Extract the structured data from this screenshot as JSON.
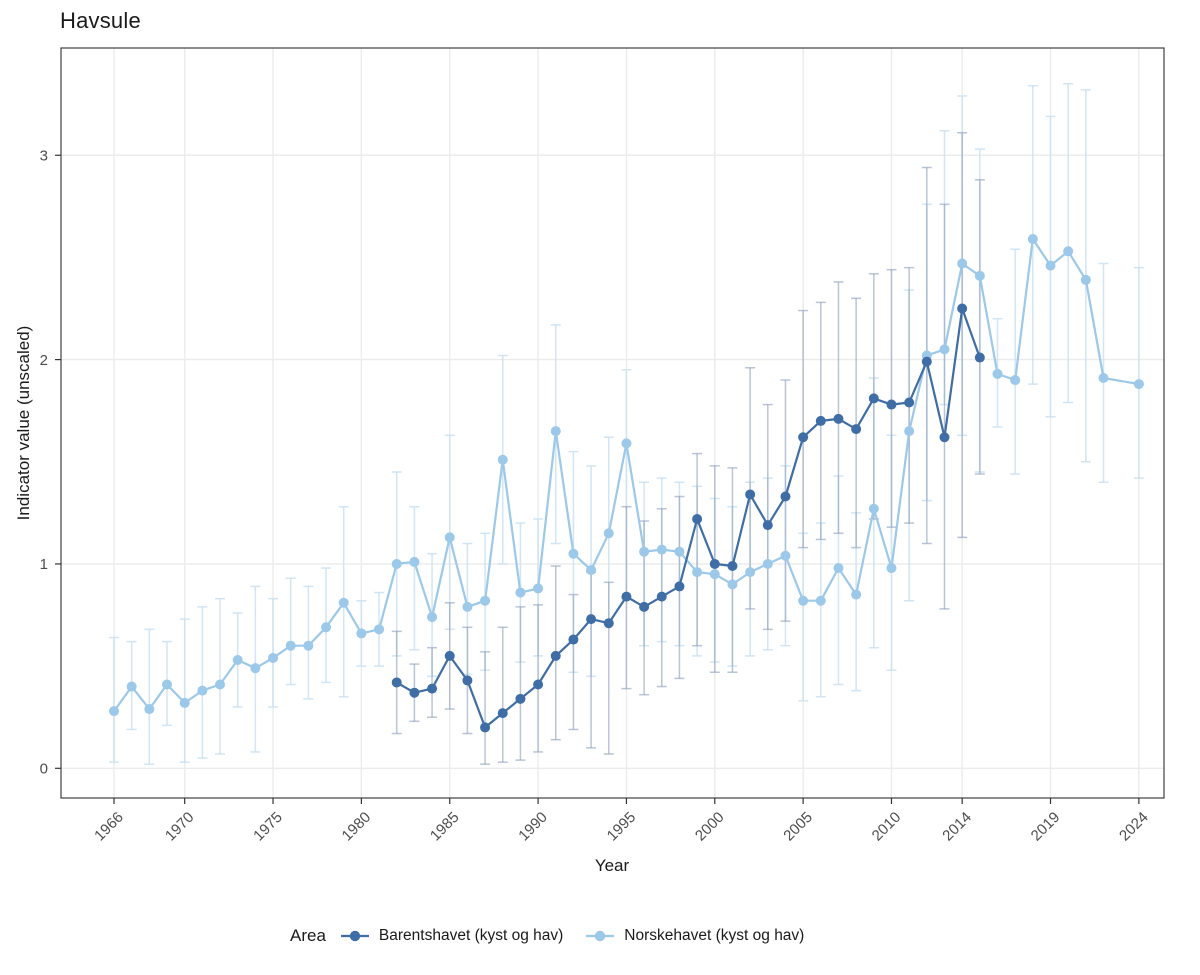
{
  "chart_data": {
    "type": "line",
    "title": "Havsule",
    "xlabel": "Year",
    "ylabel": "Indicator value (unscaled)",
    "legend_title": "Area",
    "legend_position": "bottom",
    "grid": "major-only",
    "x_ticks": [
      1966,
      1970,
      1975,
      1980,
      1985,
      1990,
      1995,
      2000,
      2005,
      2010,
      2014,
      2019,
      2024
    ],
    "y_ticks": [
      0,
      1,
      2,
      3
    ],
    "xlim": [
      1963,
      2025.4
    ],
    "ylim": [
      -0.15,
      3.52
    ],
    "point_format": [
      "year",
      "value",
      "ci_low",
      "ci_high"
    ],
    "series": [
      {
        "name": "Barentshavet (kyst og hav)",
        "color": "#3f6da5",
        "error_color": "#8b9fbd",
        "error_opacity": 0.6,
        "points": [
          [
            1982,
            0.42,
            0.17,
            0.67
          ],
          [
            1983,
            0.37,
            0.23,
            0.51
          ],
          [
            1984,
            0.39,
            0.25,
            0.59
          ],
          [
            1985,
            0.55,
            0.29,
            0.81
          ],
          [
            1986,
            0.43,
            0.17,
            0.69
          ],
          [
            1987,
            0.2,
            0.02,
            0.57
          ],
          [
            1988,
            0.27,
            0.03,
            0.69
          ],
          [
            1989,
            0.34,
            0.04,
            0.79
          ],
          [
            1990,
            0.41,
            0.08,
            0.8
          ],
          [
            1991,
            0.55,
            0.14,
            0.99
          ],
          [
            1992,
            0.63,
            0.19,
            0.85
          ],
          [
            1993,
            0.73,
            0.1,
            0.96
          ],
          [
            1994,
            0.71,
            0.07,
            0.91
          ],
          [
            1995,
            0.84,
            0.39,
            1.28
          ],
          [
            1996,
            0.79,
            0.36,
            1.21
          ],
          [
            1997,
            0.84,
            0.4,
            1.27
          ],
          [
            1998,
            0.89,
            0.44,
            1.33
          ],
          [
            1999,
            1.22,
            0.6,
            1.54
          ],
          [
            2000,
            1.0,
            0.47,
            1.48
          ],
          [
            2001,
            0.99,
            0.47,
            1.47
          ],
          [
            2002,
            1.34,
            0.78,
            1.96
          ],
          [
            2003,
            1.19,
            0.68,
            1.78
          ],
          [
            2004,
            1.33,
            0.72,
            1.9
          ],
          [
            2005,
            1.62,
            1.08,
            2.24
          ],
          [
            2006,
            1.7,
            1.12,
            2.28
          ],
          [
            2007,
            1.71,
            1.15,
            2.38
          ],
          [
            2008,
            1.66,
            1.08,
            2.3
          ],
          [
            2009,
            1.81,
            1.22,
            2.42
          ],
          [
            2010,
            1.78,
            1.18,
            2.44
          ],
          [
            2011,
            1.79,
            1.2,
            2.45
          ],
          [
            2012,
            1.99,
            1.1,
            2.94
          ],
          [
            2013,
            1.62,
            0.78,
            2.76
          ],
          [
            2014,
            2.25,
            1.13,
            3.11
          ],
          [
            2015,
            2.01,
            1.44,
            2.88
          ]
        ]
      },
      {
        "name": "Norskehavet (kyst og hav)",
        "color": "#9cc8e9",
        "error_color": "#c9e0f2",
        "error_opacity": 0.85,
        "points": [
          [
            1966,
            0.28,
            0.03,
            0.64
          ],
          [
            1967,
            0.4,
            0.19,
            0.62
          ],
          [
            1968,
            0.29,
            0.02,
            0.68
          ],
          [
            1969,
            0.41,
            0.21,
            0.62
          ],
          [
            1970,
            0.32,
            0.03,
            0.73
          ],
          [
            1971,
            0.38,
            0.05,
            0.79
          ],
          [
            1972,
            0.41,
            0.07,
            0.83
          ],
          [
            1973,
            0.53,
            0.3,
            0.76
          ],
          [
            1974,
            0.49,
            0.08,
            0.89
          ],
          [
            1975,
            0.54,
            0.3,
            0.83
          ],
          [
            1976,
            0.6,
            0.41,
            0.93
          ],
          [
            1977,
            0.6,
            0.34,
            0.89
          ],
          [
            1978,
            0.69,
            0.42,
            0.98
          ],
          [
            1979,
            0.81,
            0.35,
            1.28
          ],
          [
            1980,
            0.66,
            0.5,
            0.82
          ],
          [
            1981,
            0.68,
            0.5,
            0.86
          ],
          [
            1982,
            1.0,
            0.55,
            1.45
          ],
          [
            1983,
            1.01,
            0.58,
            1.28
          ],
          [
            1984,
            0.74,
            0.45,
            1.05
          ],
          [
            1985,
            1.13,
            0.68,
            1.63
          ],
          [
            1986,
            0.79,
            0.46,
            1.1
          ],
          [
            1987,
            0.82,
            0.48,
            1.15
          ],
          [
            1988,
            1.51,
            1.0,
            2.02
          ],
          [
            1989,
            0.86,
            0.52,
            1.2
          ],
          [
            1990,
            0.88,
            0.55,
            1.22
          ],
          [
            1991,
            1.65,
            1.1,
            2.17
          ],
          [
            1992,
            1.05,
            0.47,
            1.55
          ],
          [
            1993,
            0.97,
            0.45,
            1.48
          ],
          [
            1994,
            1.15,
            0.71,
            1.62
          ],
          [
            1995,
            1.59,
            0.83,
            1.95
          ],
          [
            1996,
            1.06,
            0.6,
            1.4
          ],
          [
            1997,
            1.07,
            0.62,
            1.42
          ],
          [
            1998,
            1.06,
            0.6,
            1.4
          ],
          [
            1999,
            0.96,
            0.55,
            1.38
          ],
          [
            2000,
            0.95,
            0.52,
            1.32
          ],
          [
            2001,
            0.9,
            0.5,
            1.28
          ],
          [
            2002,
            0.96,
            0.55,
            1.4
          ],
          [
            2003,
            1.0,
            0.58,
            1.42
          ],
          [
            2004,
            1.04,
            0.6,
            1.48
          ],
          [
            2005,
            0.82,
            0.33,
            1.15
          ],
          [
            2006,
            0.82,
            0.35,
            1.2
          ],
          [
            2007,
            0.98,
            0.41,
            1.43
          ],
          [
            2008,
            0.85,
            0.38,
            1.25
          ],
          [
            2009,
            1.27,
            0.59,
            1.91
          ],
          [
            2010,
            0.98,
            0.48,
            1.63
          ],
          [
            2011,
            1.65,
            0.82,
            2.34
          ],
          [
            2012,
            2.02,
            1.31,
            2.76
          ],
          [
            2013,
            2.05,
            1.78,
            3.12
          ],
          [
            2014,
            2.47,
            1.63,
            3.29
          ],
          [
            2015,
            2.41,
            1.45,
            3.03
          ],
          [
            2016,
            1.93,
            1.67,
            2.2
          ],
          [
            2017,
            1.9,
            1.44,
            2.54
          ],
          [
            2018,
            2.59,
            1.88,
            3.34
          ],
          [
            2019,
            2.46,
            1.72,
            3.19
          ],
          [
            2020,
            2.53,
            1.79,
            3.35
          ],
          [
            2021,
            2.39,
            1.5,
            3.32
          ],
          [
            2022,
            1.91,
            1.4,
            2.47
          ],
          [
            2024,
            1.88,
            1.42,
            2.45
          ]
        ]
      }
    ]
  }
}
